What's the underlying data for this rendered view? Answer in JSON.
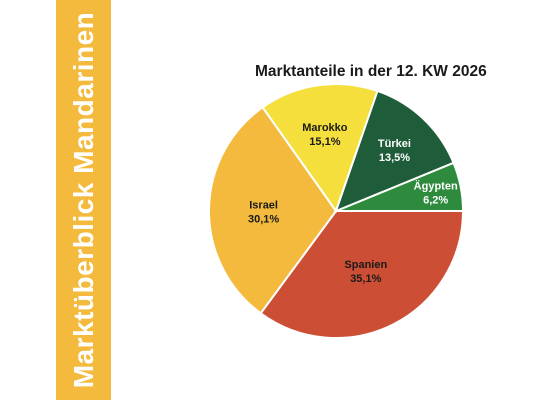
{
  "banner": {
    "title": "Marktüberblick Mandarinen",
    "color": "#F3BA3E"
  },
  "chart_data": {
    "type": "pie",
    "title": "Marktanteile in der 12. KW 2026",
    "slices": [
      {
        "label": "Ägypten",
        "value": 6.2,
        "value_label": "6,2%",
        "color": "#2E8B3E",
        "text_color": "#ffffff"
      },
      {
        "label": "Spanien",
        "value": 35.1,
        "value_label": "35,1%",
        "color": "#CC4F35",
        "text_color": "#1a1a1a"
      },
      {
        "label": "Israel",
        "value": 30.1,
        "value_label": "30,1%",
        "color": "#F3BA3E",
        "text_color": "#1a1a1a"
      },
      {
        "label": "Marokko",
        "value": 15.1,
        "value_label": "15,1%",
        "color": "#F5DF3D",
        "text_color": "#1a1a1a"
      },
      {
        "label": "Türkei",
        "value": 13.5,
        "value_label": "13,5%",
        "color": "#1E5C3A",
        "text_color": "#ffffff"
      }
    ]
  }
}
